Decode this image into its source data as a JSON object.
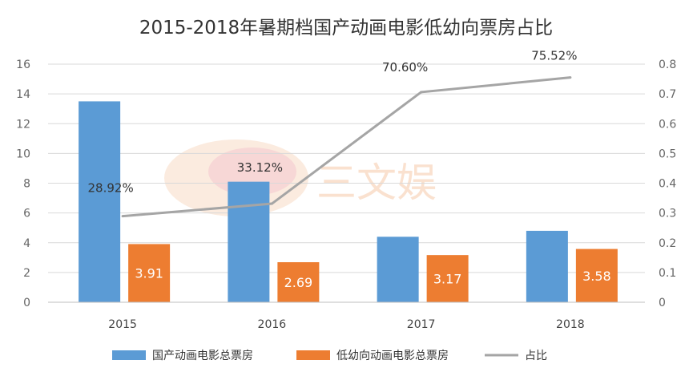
{
  "chart_data": {
    "type": "bar+line",
    "title": "2015-2018年暑期档国产动画电影低幼向票房占比",
    "categories": [
      "2015",
      "2016",
      "2017",
      "2018"
    ],
    "series": [
      {
        "name": "国产动画电影总票房",
        "type": "bar",
        "axis": "left",
        "color": "#5b9bd5",
        "values": [
          13.5,
          8.1,
          4.4,
          4.8
        ]
      },
      {
        "name": "低幼向动画电影总票房",
        "type": "bar",
        "axis": "left",
        "color": "#ed7d31",
        "values": [
          3.91,
          2.69,
          3.17,
          3.58
        ],
        "labels": [
          "3.91",
          "2.69",
          "3.17",
          "3.58"
        ]
      },
      {
        "name": "占比",
        "type": "line",
        "axis": "right",
        "color": "#a5a5a5",
        "values": [
          0.2892,
          0.3312,
          0.706,
          0.7552
        ],
        "labels": [
          "28.92%",
          "33.12%",
          "70.60%",
          "75.52%"
        ]
      }
    ],
    "left_axis": {
      "min": 0,
      "max": 16,
      "step": 2,
      "ticks": [
        "0",
        "2",
        "4",
        "6",
        "8",
        "10",
        "12",
        "14",
        "16"
      ]
    },
    "right_axis": {
      "min": 0,
      "max": 0.8,
      "step": 0.1,
      "ticks": [
        "0",
        "0.1",
        "0.2",
        "0.3",
        "0.4",
        "0.5",
        "0.6",
        "0.7",
        "0.8"
      ]
    },
    "grid": true,
    "legend_position": "bottom"
  },
  "watermark": {
    "text": "三文娱"
  }
}
